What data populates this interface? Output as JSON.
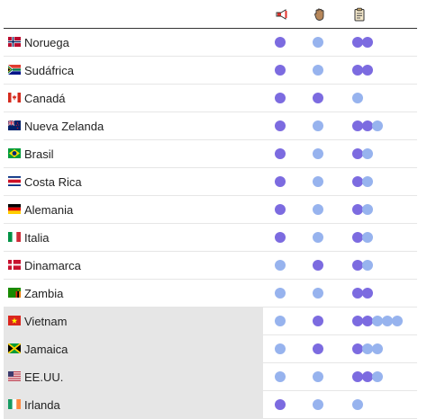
{
  "palette": {
    "dark_dot": "#7c6be0",
    "light_dot": "#97b3ee",
    "shade": "#e6e6e6"
  },
  "header_icons": [
    "megaphone-icon",
    "hand-icon",
    "clipboard-icon"
  ],
  "rows": [
    {
      "country": "Noruega",
      "flag": "norway",
      "shaded": false,
      "col1": "dark",
      "col2": "light",
      "col3": [
        "dark",
        "dark"
      ]
    },
    {
      "country": "Sudáfrica",
      "flag": "south-africa",
      "shaded": false,
      "col1": "dark",
      "col2": "light",
      "col3": [
        "dark",
        "dark"
      ]
    },
    {
      "country": "Canadá",
      "flag": "canada",
      "shaded": false,
      "col1": "dark",
      "col2": "dark",
      "col3": [
        "light"
      ]
    },
    {
      "country": "Nueva Zelanda",
      "flag": "new-zealand",
      "shaded": false,
      "col1": "dark",
      "col2": "light",
      "col3": [
        "dark",
        "dark",
        "light"
      ]
    },
    {
      "country": "Brasil",
      "flag": "brazil",
      "shaded": false,
      "col1": "dark",
      "col2": "light",
      "col3": [
        "dark",
        "light"
      ]
    },
    {
      "country": "Costa Rica",
      "flag": "costa-rica",
      "shaded": false,
      "col1": "dark",
      "col2": "light",
      "col3": [
        "dark",
        "light"
      ]
    },
    {
      "country": "Alemania",
      "flag": "germany",
      "shaded": false,
      "col1": "dark",
      "col2": "light",
      "col3": [
        "dark",
        "light"
      ]
    },
    {
      "country": "Italia",
      "flag": "italy",
      "shaded": false,
      "col1": "dark",
      "col2": "light",
      "col3": [
        "dark",
        "light"
      ]
    },
    {
      "country": "Dinamarca",
      "flag": "denmark",
      "shaded": false,
      "col1": "light",
      "col2": "dark",
      "col3": [
        "dark",
        "light"
      ]
    },
    {
      "country": "Zambia",
      "flag": "zambia",
      "shaded": false,
      "col1": "light",
      "col2": "light",
      "col3": [
        "dark",
        "dark"
      ]
    },
    {
      "country": "Vietnam",
      "flag": "vietnam",
      "shaded": true,
      "col1": "light",
      "col2": "dark",
      "col3": [
        "dark",
        "dark",
        "light",
        "light",
        "light"
      ]
    },
    {
      "country": "Jamaica",
      "flag": "jamaica",
      "shaded": true,
      "col1": "light",
      "col2": "dark",
      "col3": [
        "dark",
        "light",
        "light"
      ]
    },
    {
      "country": "EE.UU.",
      "flag": "usa",
      "shaded": true,
      "col1": "light",
      "col2": "light",
      "col3": [
        "dark",
        "dark",
        "light"
      ]
    },
    {
      "country": "Irlanda",
      "flag": "ireland",
      "shaded": true,
      "col1": "dark",
      "col2": "light",
      "col3": [
        "light"
      ]
    }
  ]
}
